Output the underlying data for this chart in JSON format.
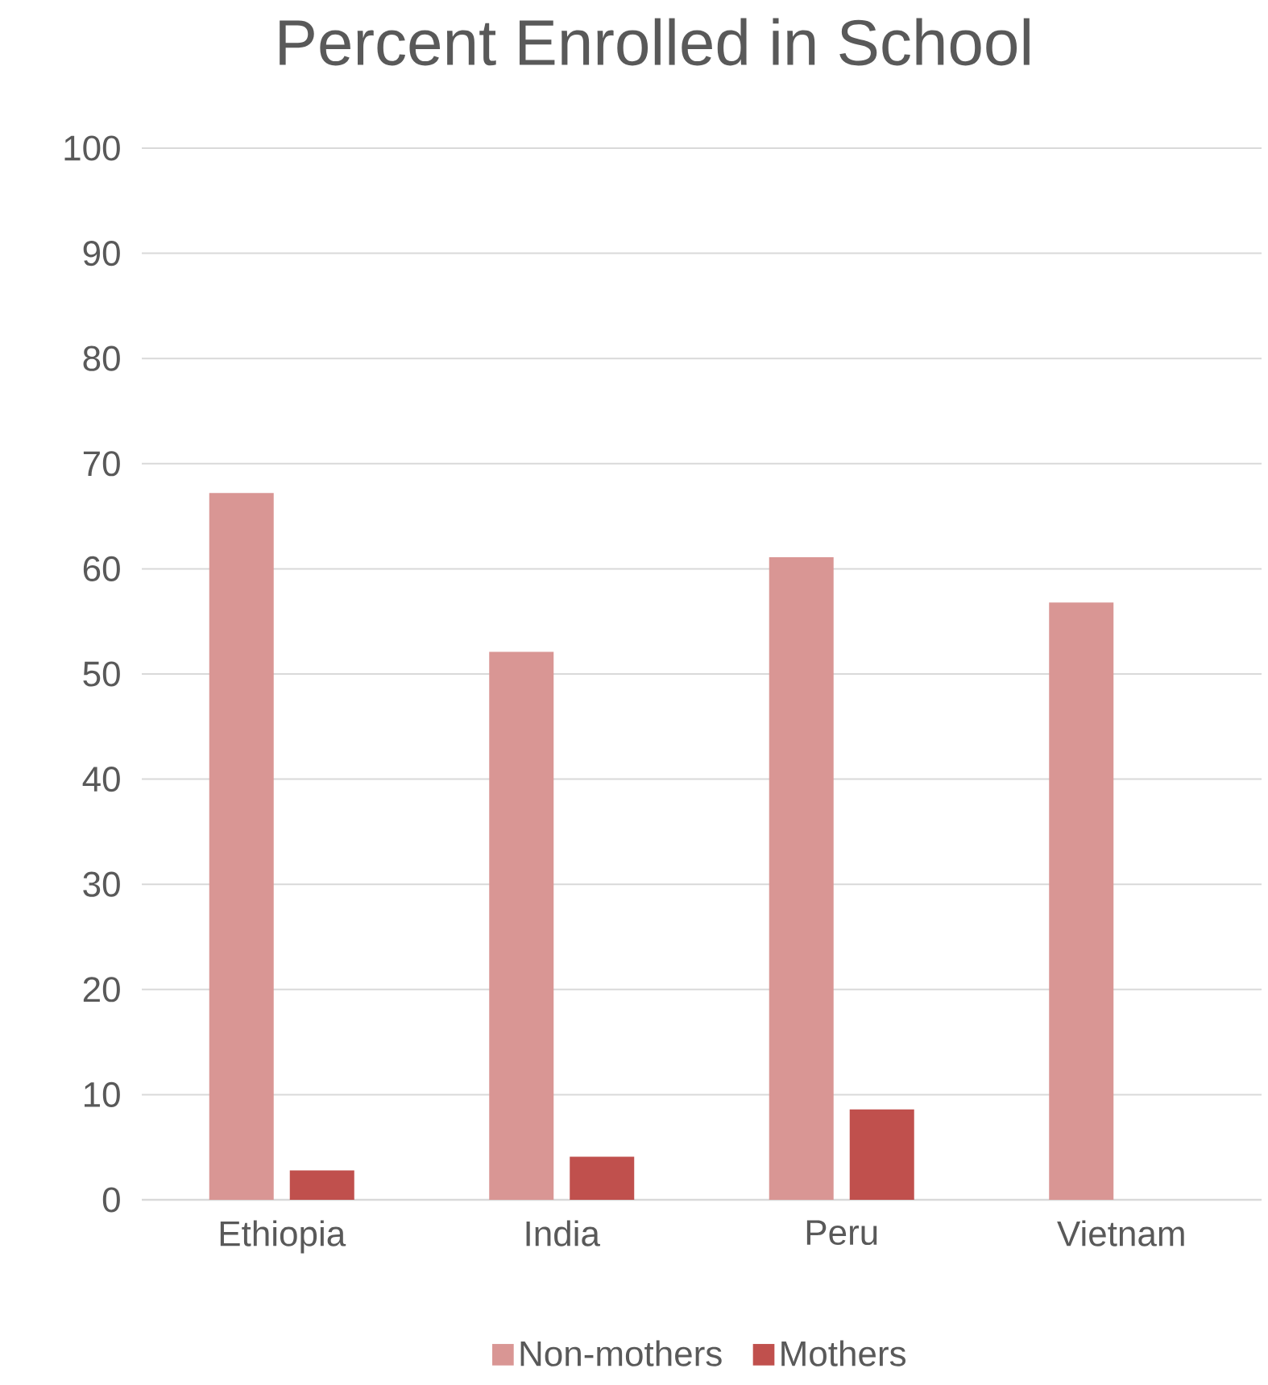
{
  "chart_data": {
    "type": "bar",
    "title": "Percent Enrolled in School",
    "categories": [
      "Ethiopia",
      "India",
      "Peru",
      "Vietnam"
    ],
    "series": [
      {
        "name": "Non-mothers",
        "color": "#d99694",
        "values": [
          67.2,
          52.1,
          61.1,
          56.8
        ]
      },
      {
        "name": "Mothers",
        "color": "#c0504d",
        "values": [
          2.8,
          4.1,
          8.6,
          null
        ]
      }
    ],
    "ylim": [
      0,
      100
    ],
    "yticks": [
      0,
      10,
      20,
      30,
      40,
      50,
      60,
      70,
      80,
      90,
      100
    ],
    "grid": "y",
    "legend": "bottom"
  }
}
